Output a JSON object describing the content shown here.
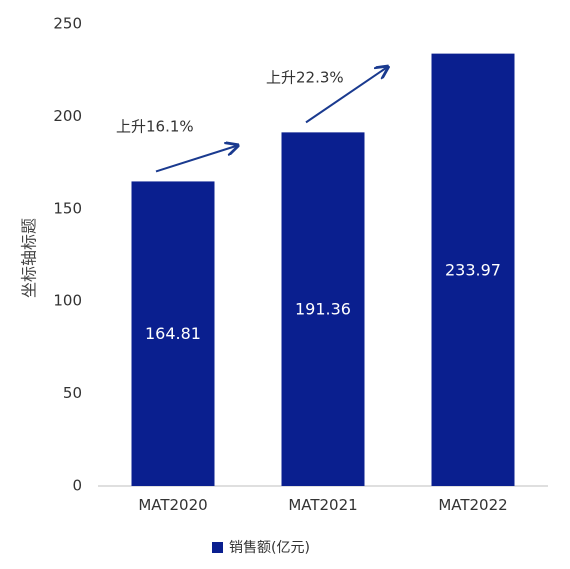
{
  "chart_data": {
    "type": "bar",
    "ylabel": "坐标轴标题",
    "categories": [
      "MAT2020",
      "MAT2021",
      "MAT2022"
    ],
    "series": [
      {
        "name": "销售额(亿元)",
        "values": [
          164.81,
          191.36,
          233.97
        ]
      }
    ],
    "data_labels": [
      "164.81",
      "191.36",
      "233.97"
    ],
    "yticks": [
      0,
      50,
      100,
      150,
      200,
      250
    ],
    "ylim": [
      0,
      250
    ],
    "grid": false,
    "legend_position": "bottom",
    "annotations": [
      {
        "text": "上升16.1%",
        "from": "MAT2020",
        "to": "MAT2021"
      },
      {
        "text": "上升22.3%",
        "from": "MAT2021",
        "to": "MAT2022"
      }
    ],
    "colors": {
      "bar": "#0a1f8f",
      "arrow": "#1a3a8f",
      "axis": "#bfbfbf"
    }
  }
}
